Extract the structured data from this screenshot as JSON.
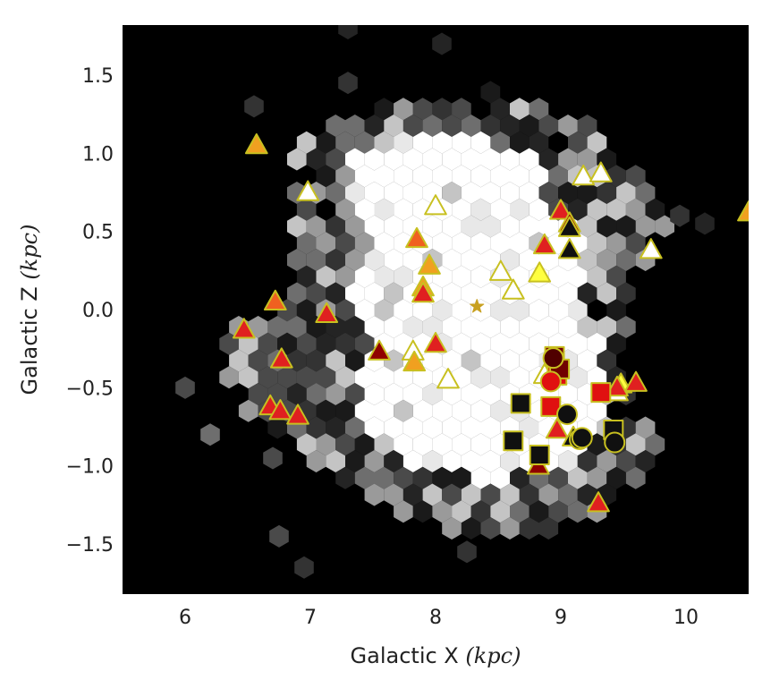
{
  "chart_data": {
    "type": "scatter",
    "xlabel": "Galactic X",
    "xlabel_unit": "(kpc)",
    "ylabel": "Galactic Z",
    "ylabel_unit": "(kpc)",
    "xlim": [
      5.5,
      10.5
    ],
    "ylim": [
      -1.82,
      1.82
    ],
    "xticks": [
      6,
      7,
      8,
      9,
      10
    ],
    "yticks": [
      1.5,
      1.0,
      0.5,
      0.0,
      -0.5,
      -1.0,
      -1.5
    ],
    "grid": false,
    "legend": "none",
    "background": "#000000",
    "density_hexbin": {
      "levels": [
        "#ffffff",
        "#e8e8e8",
        "#c4c4c4",
        "#9a9a9a",
        "#6e6e6e",
        "#4a4a4a",
        "#333333",
        "#242424",
        "#1a1a1a"
      ],
      "core_region": [
        [
          7.35,
          1.05
        ],
        [
          8.25,
          1.12
        ],
        [
          8.85,
          0.95
        ],
        [
          8.85,
          0.6
        ],
        [
          9.25,
          0.5
        ],
        [
          9.15,
          0.05
        ],
        [
          9.35,
          -0.3
        ],
        [
          9.3,
          -0.85
        ],
        [
          8.9,
          -1.05
        ],
        [
          8.35,
          -1.1
        ],
        [
          7.75,
          -0.98
        ],
        [
          7.4,
          -0.7
        ],
        [
          7.35,
          -0.4
        ],
        [
          7.5,
          -0.25
        ],
        [
          7.35,
          0.1
        ],
        [
          7.5,
          0.45
        ],
        [
          7.3,
          0.8
        ]
      ],
      "halo_region": [
        [
          6.9,
          1.05
        ],
        [
          7.6,
          1.35
        ],
        [
          8.5,
          1.4
        ],
        [
          9.2,
          1.2
        ],
        [
          9.7,
          0.8
        ],
        [
          10.0,
          0.55
        ],
        [
          9.6,
          0.25
        ],
        [
          9.5,
          -0.3
        ],
        [
          9.8,
          -0.95
        ],
        [
          9.4,
          -1.3
        ],
        [
          8.8,
          -1.45
        ],
        [
          8.0,
          -1.4
        ],
        [
          7.5,
          -1.2
        ],
        [
          7.0,
          -0.95
        ],
        [
          6.3,
          -0.55
        ],
        [
          6.35,
          -0.1
        ],
        [
          6.9,
          0.15
        ],
        [
          6.85,
          0.6
        ]
      ],
      "outliers": [
        {
          "x": 7.3,
          "y": 1.8,
          "level": 7
        },
        {
          "x": 8.05,
          "y": 1.7,
          "level": 7
        },
        {
          "x": 7.3,
          "y": 1.45,
          "level": 6
        },
        {
          "x": 6.55,
          "y": 1.3,
          "level": 6
        },
        {
          "x": 8.25,
          "y": -1.55,
          "level": 6
        },
        {
          "x": 6.75,
          "y": -1.45,
          "level": 5
        },
        {
          "x": 6.95,
          "y": -1.65,
          "level": 6
        },
        {
          "x": 6.0,
          "y": -0.5,
          "level": 5
        },
        {
          "x": 6.2,
          "y": -0.8,
          "level": 4
        },
        {
          "x": 6.7,
          "y": -0.95,
          "level": 5
        },
        {
          "x": 9.95,
          "y": 0.6,
          "level": 6
        },
        {
          "x": 10.15,
          "y": 0.55,
          "level": 7
        }
      ]
    },
    "series": [
      {
        "marker": "triangle",
        "fill": "#ffffff",
        "edge": "#c8c020",
        "points": [
          [
            6.98,
            0.75
          ],
          [
            8.0,
            0.66
          ],
          [
            8.52,
            0.24
          ],
          [
            8.62,
            0.12
          ],
          [
            7.82,
            -0.27
          ],
          [
            8.1,
            -0.45
          ],
          [
            8.87,
            -0.42
          ],
          [
            9.18,
            0.85
          ],
          [
            9.32,
            0.87
          ],
          [
            9.72,
            0.38
          ],
          [
            9.45,
            -0.53
          ]
        ]
      },
      {
        "marker": "triangle",
        "fill": "#ffff40",
        "edge": "#c8c020",
        "points": [
          [
            8.83,
            0.23
          ],
          [
            9.48,
            -0.48
          ]
        ]
      },
      {
        "marker": "triangle",
        "fill": "#f0a020",
        "edge": "#c8c020",
        "points": [
          [
            6.57,
            1.05
          ],
          [
            7.95,
            0.28
          ],
          [
            7.9,
            0.14
          ],
          [
            7.83,
            -0.34
          ],
          [
            10.5,
            0.62
          ]
        ]
      },
      {
        "marker": "triangle",
        "fill": "#f06020",
        "edge": "#c8c020",
        "points": [
          [
            6.72,
            0.05
          ],
          [
            7.85,
            0.45
          ]
        ]
      },
      {
        "marker": "triangle",
        "fill": "#e02020",
        "edge": "#c8c020",
        "points": [
          [
            6.47,
            -0.13
          ],
          [
            7.13,
            -0.03
          ],
          [
            6.77,
            -0.32
          ],
          [
            6.68,
            -0.62
          ],
          [
            6.76,
            -0.65
          ],
          [
            6.9,
            -0.68
          ],
          [
            7.9,
            0.1
          ],
          [
            8.0,
            -0.22
          ],
          [
            9.0,
            0.63
          ],
          [
            8.87,
            0.41
          ],
          [
            8.97,
            -0.77
          ],
          [
            9.6,
            -0.47
          ],
          [
            9.3,
            -1.24
          ],
          [
            9.45,
            -0.5
          ]
        ]
      },
      {
        "marker": "triangle",
        "fill": "#900000",
        "edge": "#c8c020",
        "points": [
          [
            7.55,
            -0.27
          ],
          [
            9.07,
            0.55
          ],
          [
            8.82,
            -1.0
          ]
        ]
      },
      {
        "marker": "triangle",
        "fill": "#101010",
        "edge": "#c8c020",
        "points": [
          [
            9.07,
            0.52
          ],
          [
            9.07,
            0.38
          ],
          [
            9.1,
            -0.82
          ]
        ]
      },
      {
        "marker": "square",
        "fill": "#e01010",
        "edge": "#c8c020",
        "points": [
          [
            9.32,
            -0.53
          ],
          [
            8.92,
            -0.62
          ],
          [
            8.97,
            -0.42
          ]
        ]
      },
      {
        "marker": "square",
        "fill": "#700000",
        "edge": "#c8c020",
        "points": [
          [
            8.95,
            -0.3
          ],
          [
            8.99,
            -0.38
          ]
        ]
      },
      {
        "marker": "square",
        "fill": "#101010",
        "edge": "#c8c020",
        "points": [
          [
            8.68,
            -0.6
          ],
          [
            8.62,
            -0.84
          ],
          [
            8.83,
            -0.93
          ],
          [
            9.42,
            -0.77
          ]
        ]
      },
      {
        "marker": "circle",
        "fill": "#e01010",
        "edge": "#c8c020",
        "points": [
          [
            8.92,
            -0.46
          ]
        ]
      },
      {
        "marker": "circle",
        "fill": "#500000",
        "edge": "#c8c020",
        "points": [
          [
            8.94,
            -0.31
          ]
        ]
      },
      {
        "marker": "circle",
        "fill": "#101010",
        "edge": "#c8c020",
        "points": [
          [
            9.05,
            -0.67
          ],
          [
            9.15,
            -0.83
          ],
          [
            9.43,
            -0.85
          ],
          [
            9.17,
            -0.82
          ]
        ]
      },
      {
        "marker": "star",
        "fill": "#c8a020",
        "edge": "#c8a020",
        "points": [
          [
            8.33,
            0.02
          ]
        ]
      }
    ]
  }
}
